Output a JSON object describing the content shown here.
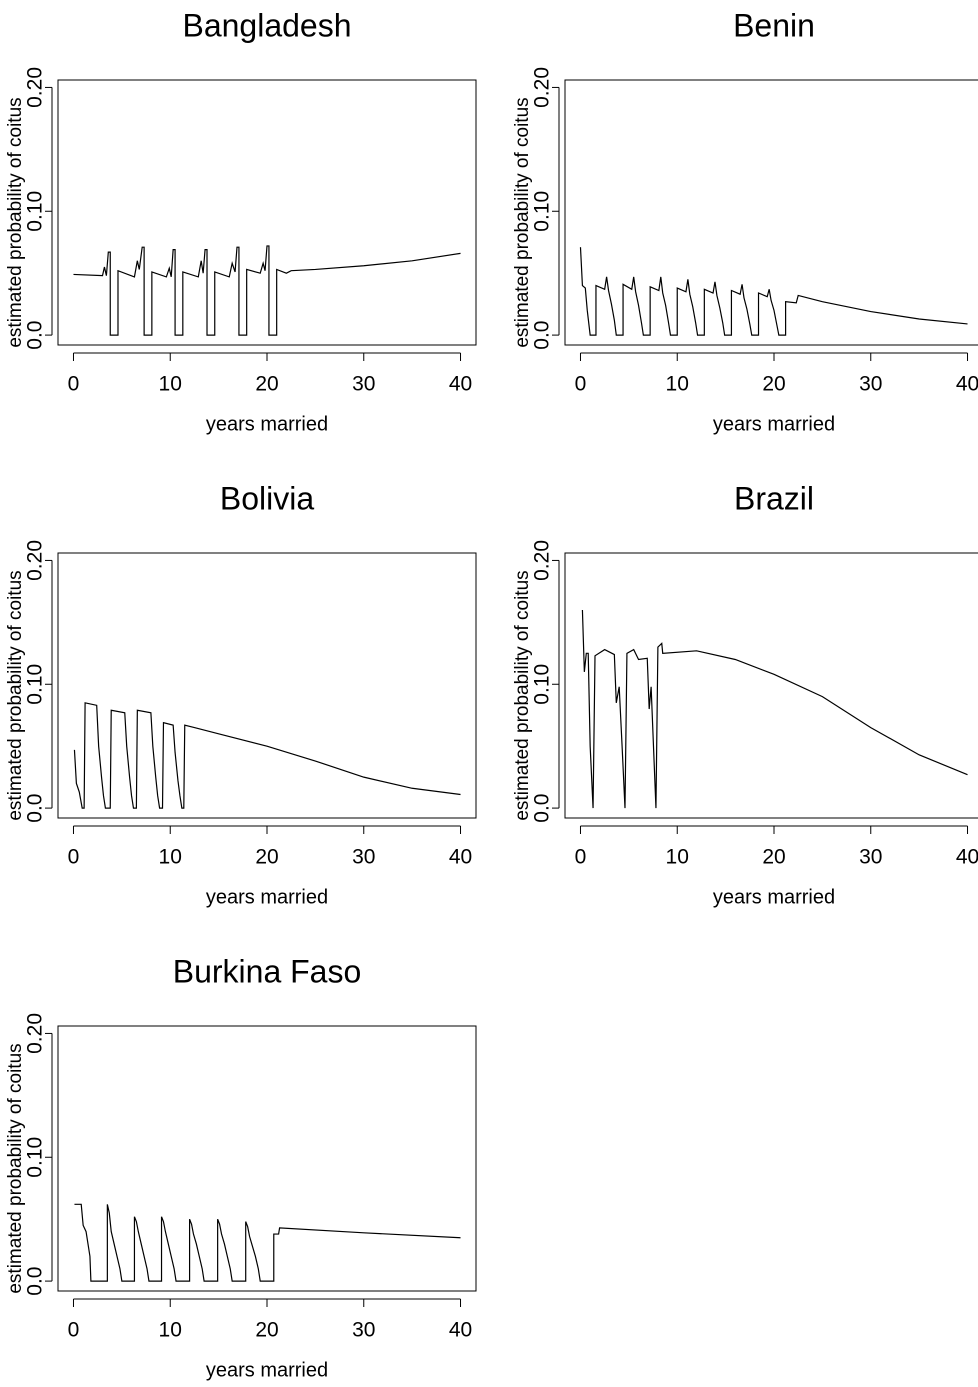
{
  "chart_data": [
    {
      "type": "line",
      "title": "Bangladesh",
      "x_label": "years married",
      "y_label": "estimated probability of coitus",
      "color": "#000000",
      "xlim": [
        -1.6,
        41.6
      ],
      "ylim": [
        -0.008,
        0.206
      ],
      "xticks": [
        0,
        10,
        20,
        30,
        40
      ],
      "yticks": [
        {
          "value": 0,
          "label": "0.0"
        },
        {
          "value": 0.1,
          "label": "0.10"
        },
        {
          "value": 0.2,
          "label": "0.20"
        }
      ],
      "x": [
        0,
        3,
        3.2,
        3.4,
        3.6,
        3.8,
        3.8,
        4.6,
        4.6,
        6.3,
        6.6,
        6.8,
        7.1,
        7.3,
        7.3,
        8.1,
        8.1,
        9.6,
        9.9,
        10.1,
        10.3,
        10.5,
        10.5,
        11.3,
        11.3,
        12.9,
        13.2,
        13.4,
        13.6,
        13.8,
        13.8,
        14.6,
        14.6,
        16.1,
        16.4,
        16.7,
        16.9,
        17.1,
        17.1,
        17.9,
        17.9,
        19.3,
        19.6,
        19.8,
        20,
        20.2,
        20.2,
        21,
        21,
        22,
        22.5,
        25,
        30,
        35,
        40
      ],
      "values": [
        0.049,
        0.048,
        0.055,
        0.048,
        0.067,
        0.067,
        0,
        0,
        0.052,
        0.047,
        0.06,
        0.053,
        0.071,
        0.071,
        0,
        0,
        0.051,
        0.047,
        0.054,
        0.047,
        0.069,
        0.069,
        0,
        0,
        0.051,
        0.047,
        0.06,
        0.05,
        0.069,
        0.069,
        0,
        0,
        0.051,
        0.047,
        0.058,
        0.051,
        0.071,
        0.071,
        0,
        0,
        0.053,
        0.05,
        0.058,
        0.052,
        0.072,
        0.072,
        0,
        0,
        0.053,
        0.05,
        0.052,
        0.053,
        0.056,
        0.06,
        0.066
      ]
    },
    {
      "type": "line",
      "title": "Benin",
      "x_label": "years married",
      "y_label": "estimated probability of coitus",
      "color": "#000000",
      "xlim": [
        -1.6,
        41.6
      ],
      "ylim": [
        -0.008,
        0.206
      ],
      "xticks": [
        0,
        10,
        20,
        30,
        40
      ],
      "yticks": [
        {
          "value": 0,
          "label": "0.0"
        },
        {
          "value": 0.1,
          "label": "0.10"
        },
        {
          "value": 0.2,
          "label": "0.20"
        }
      ],
      "x": [
        0,
        0.2,
        0.5,
        0.7,
        1.0,
        1.6,
        1.6,
        2.5,
        2.7,
        2.9,
        3.2,
        3.5,
        3.7,
        4.4,
        4.4,
        5.3,
        5.5,
        5.7,
        6.0,
        6.3,
        6.5,
        7.2,
        7.2,
        8.1,
        8.3,
        8.5,
        8.8,
        9.1,
        9.3,
        10.0,
        10,
        10.9,
        11.1,
        11.3,
        11.6,
        11.9,
        12.1,
        12.8,
        12.8,
        13.7,
        13.9,
        14.1,
        14.4,
        14.7,
        14.9,
        15.6,
        15.6,
        16.5,
        16.7,
        16.9,
        17.2,
        17.5,
        17.7,
        18.4,
        18.4,
        19.3,
        19.5,
        19.7,
        20.0,
        20.3,
        20.5,
        21.2,
        21.2,
        22.3,
        22.5,
        25,
        30,
        35,
        40
      ],
      "values": [
        0.071,
        0.04,
        0.038,
        0.02,
        0,
        0,
        0.04,
        0.037,
        0.047,
        0.036,
        0.025,
        0.012,
        0,
        0,
        0.041,
        0.037,
        0.047,
        0.035,
        0.024,
        0.01,
        0,
        0,
        0.039,
        0.036,
        0.047,
        0.034,
        0.024,
        0.01,
        0,
        0,
        0.038,
        0.035,
        0.045,
        0.033,
        0.023,
        0.01,
        0,
        0,
        0.037,
        0.034,
        0.043,
        0.032,
        0.022,
        0.01,
        0,
        0,
        0.036,
        0.033,
        0.041,
        0.03,
        0.021,
        0.009,
        0,
        0,
        0.034,
        0.031,
        0.037,
        0.028,
        0.02,
        0.008,
        0,
        0,
        0.027,
        0.026,
        0.032,
        0.027,
        0.019,
        0.013,
        0.009
      ]
    },
    {
      "type": "line",
      "title": "Bolivia",
      "x_label": "years married",
      "y_label": "estimated probability of coitus",
      "color": "#000000",
      "xlim": [
        -1.6,
        41.6
      ],
      "ylim": [
        -0.008,
        0.206
      ],
      "xticks": [
        0,
        10,
        20,
        30,
        40
      ],
      "yticks": [
        {
          "value": 0,
          "label": "0.0"
        },
        {
          "value": 0.1,
          "label": "0.10"
        },
        {
          "value": 0.2,
          "label": "0.20"
        }
      ],
      "x": [
        0.1,
        0.3,
        0.6,
        0.9,
        1.1,
        1.2,
        2.4,
        2.6,
        2.9,
        3.1,
        3.3,
        3.8,
        3.9,
        5.3,
        5.5,
        5.8,
        6.0,
        6.2,
        6.5,
        6.6,
        8.0,
        8.2,
        8.5,
        8.7,
        8.9,
        9.2,
        9.3,
        10.3,
        10.5,
        10.8,
        11.0,
        11.2,
        11.4,
        11.5,
        12.5,
        15,
        20,
        25,
        30,
        35,
        40
      ],
      "values": [
        0.047,
        0.02,
        0.013,
        0,
        0,
        0.085,
        0.083,
        0.05,
        0.025,
        0.01,
        0,
        0,
        0.079,
        0.077,
        0.05,
        0.025,
        0.01,
        0,
        0,
        0.079,
        0.077,
        0.05,
        0.025,
        0.01,
        0,
        0,
        0.069,
        0.067,
        0.045,
        0.022,
        0.01,
        0,
        0,
        0.067,
        0.065,
        0.06,
        0.05,
        0.038,
        0.025,
        0.016,
        0.011
      ]
    },
    {
      "type": "line",
      "title": "Brazil",
      "x_label": "years married",
      "y_label": "estimated probability of coitus",
      "color": "#000000",
      "xlim": [
        -1.6,
        41.6
      ],
      "ylim": [
        -0.008,
        0.206
      ],
      "xticks": [
        0,
        10,
        20,
        30,
        40
      ],
      "yticks": [
        {
          "value": 0,
          "label": "0.0"
        },
        {
          "value": 0.1,
          "label": "0.10"
        },
        {
          "value": 0.2,
          "label": "0.20"
        }
      ],
      "x": [
        0.2,
        0.4,
        0.6,
        0.8,
        1.0,
        1.3,
        1.5,
        2.5,
        3.5,
        3.7,
        4.0,
        4.3,
        4.6,
        4.8,
        5.5,
        6.0,
        6.9,
        7.1,
        7.3,
        7.8,
        8.0,
        8.4,
        8.5,
        12,
        16,
        20,
        25,
        30,
        35,
        40
      ],
      "values": [
        0.16,
        0.11,
        0.125,
        0.125,
        0.05,
        0,
        0.123,
        0.128,
        0.124,
        0.085,
        0.098,
        0.05,
        0,
        0.125,
        0.128,
        0.12,
        0.121,
        0.08,
        0.098,
        0,
        0.13,
        0.133,
        0.125,
        0.127,
        0.12,
        0.108,
        0.09,
        0.065,
        0.043,
        0.027
      ]
    },
    {
      "type": "line",
      "title": "Burkina Faso",
      "x_label": "years married",
      "y_label": "estimated probability of coitus",
      "color": "#000000",
      "xlim": [
        -1.6,
        41.6
      ],
      "ylim": [
        -0.008,
        0.206
      ],
      "xticks": [
        0,
        10,
        20,
        30,
        40
      ],
      "yticks": [
        {
          "value": 0,
          "label": "0.0"
        },
        {
          "value": 0.1,
          "label": "0.10"
        },
        {
          "value": 0.2,
          "label": "0.20"
        }
      ],
      "x": [
        0.1,
        0.8,
        1.0,
        1.3,
        1.5,
        1.7,
        1.8,
        3.5,
        3.5,
        3.7,
        3.9,
        4.2,
        4.5,
        4.8,
        5.0,
        6.3,
        6.3,
        6.5,
        6.7,
        7.0,
        7.3,
        7.6,
        7.8,
        9.1,
        9.1,
        9.3,
        9.5,
        9.8,
        10.1,
        10.4,
        10.6,
        12.0,
        12.0,
        12.2,
        12.4,
        12.7,
        13.0,
        13.3,
        13.5,
        14.9,
        14.9,
        15.1,
        15.3,
        15.6,
        15.9,
        16.2,
        16.4,
        17.8,
        17.8,
        18.0,
        18.2,
        18.5,
        18.8,
        19.1,
        19.3,
        20.7,
        20.7,
        21.2,
        21.3,
        30,
        40
      ],
      "values": [
        0.062,
        0.062,
        0.045,
        0.04,
        0.03,
        0.02,
        0,
        0,
        0.062,
        0.055,
        0.04,
        0.03,
        0.02,
        0.01,
        0,
        0,
        0.052,
        0.048,
        0.04,
        0.03,
        0.02,
        0.01,
        0,
        0,
        0.052,
        0.048,
        0.04,
        0.03,
        0.02,
        0.01,
        0,
        0,
        0.05,
        0.046,
        0.038,
        0.03,
        0.02,
        0.01,
        0,
        0,
        0.05,
        0.046,
        0.038,
        0.03,
        0.02,
        0.01,
        0,
        0,
        0.048,
        0.044,
        0.036,
        0.028,
        0.02,
        0.01,
        0,
        0,
        0.038,
        0.038,
        0.043,
        0.039,
        0.035
      ]
    }
  ]
}
